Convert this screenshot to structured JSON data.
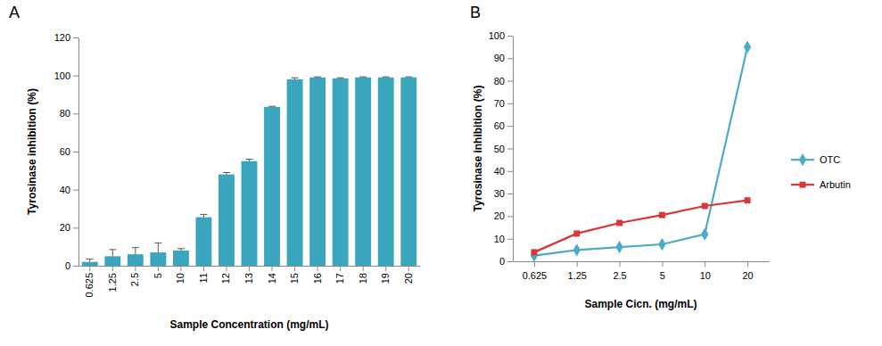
{
  "chart_data": [
    {
      "type": "bar",
      "title": "A",
      "x_label": "Sample Concentration (mg/mL)",
      "y_label": "Tyrosinase inhibition (%)",
      "categories": [
        "0.625",
        "1.25",
        "2.5",
        "5",
        "10",
        "11",
        "12",
        "13",
        "14",
        "15",
        "16",
        "17",
        "18",
        "19",
        "20"
      ],
      "values": [
        2,
        5,
        6,
        7,
        8,
        25.5,
        48,
        55,
        83.5,
        98,
        99,
        98.5,
        99,
        99,
        99
      ],
      "errors": [
        1.5,
        3.5,
        3.5,
        5,
        1,
        1.5,
        1,
        1,
        0.3,
        0.8,
        0.3,
        0.3,
        0.3,
        0.3,
        0.3
      ],
      "color": "#3aa6bd",
      "ylim": [
        0,
        120
      ],
      "yticks": [
        0,
        20,
        40,
        60,
        80,
        100,
        120
      ]
    },
    {
      "type": "line",
      "title": "B",
      "x_label": "Sample Cicn. (mg/mL)",
      "y_label": "Tyrosinase inhibition (%)",
      "categories": [
        "0.625",
        "1.25",
        "2.5",
        "5",
        "10",
        "20"
      ],
      "series": [
        {
          "name": "OTC",
          "color": "#4bacc6",
          "marker": "diamond",
          "values": [
            2.5,
            5,
            6.3,
            7.5,
            12,
            95
          ]
        },
        {
          "name": "Arbutin",
          "color": "#d9363a",
          "marker": "square",
          "values": [
            4,
            12.3,
            17,
            20.5,
            24.5,
            27
          ]
        }
      ],
      "legend": "right",
      "ylim": [
        0,
        100
      ],
      "yticks": [
        0,
        10,
        20,
        30,
        40,
        50,
        60,
        70,
        80,
        90,
        100
      ]
    }
  ]
}
